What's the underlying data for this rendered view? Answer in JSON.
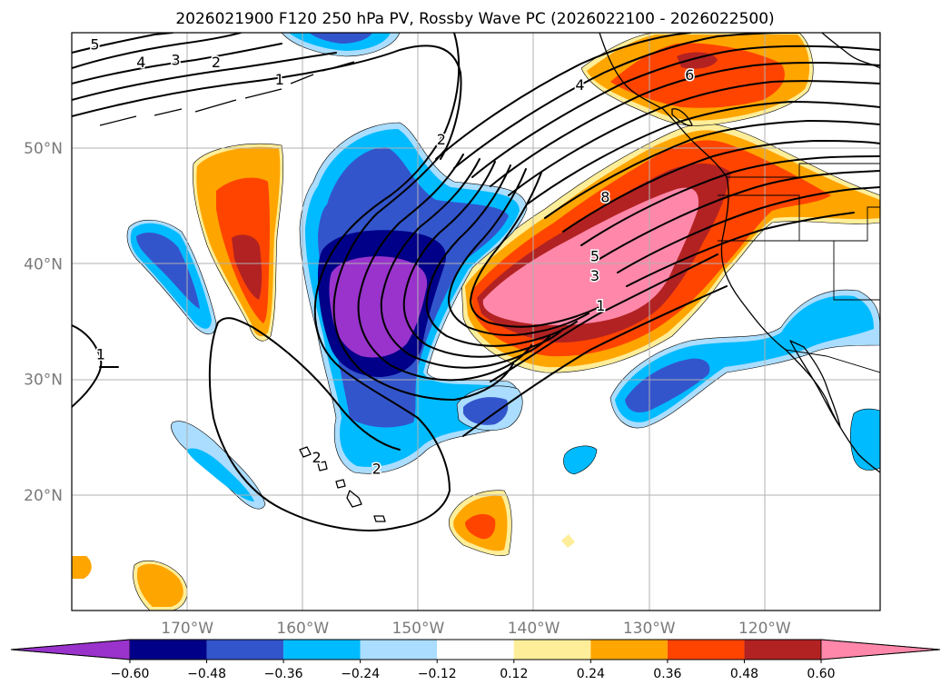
{
  "title": "2026021900 F120 250 hPa PV, Rossby Wave PC (2026022100 - 2026022500)",
  "map": {
    "projection": "PlateCarree",
    "lon_range": [
      -180,
      -110
    ],
    "lat_range": [
      10,
      60
    ],
    "lat_labels": [
      {
        "lat": 20,
        "label": "20°N"
      },
      {
        "lat": 30,
        "label": "30°N"
      },
      {
        "lat": 40,
        "label": "40°N"
      },
      {
        "lat": 50,
        "label": "50°N"
      }
    ],
    "lon_labels": [
      {
        "lon": -170,
        "label": "170°W"
      },
      {
        "lon": -160,
        "label": "160°W"
      },
      {
        "lon": -150,
        "label": "150°W"
      },
      {
        "lon": -140,
        "label": "140°W"
      },
      {
        "lon": -130,
        "label": "130°W"
      },
      {
        "lon": -120,
        "label": "120°W"
      }
    ],
    "gridlines": true
  },
  "colorbar": {
    "orientation": "horizontal",
    "extend": "both",
    "levels": [
      -0.6,
      -0.48,
      -0.36,
      -0.24,
      -0.12,
      0.12,
      0.24,
      0.36,
      0.48,
      0.6
    ],
    "tick_labels": [
      "−0.60",
      "−0.48",
      "−0.36",
      "−0.24",
      "−0.12",
      "0.12",
      "0.24",
      "0.36",
      "0.48",
      "0.60"
    ],
    "colors": [
      "#9933cc",
      "#000088",
      "#3355cc",
      "#00bbff",
      "#aaddff",
      "#ffffff",
      "#ffee99",
      "#ffa500",
      "#ff4400",
      "#b22222",
      "#ff88aa"
    ]
  },
  "contour_labels": [
    {
      "text": "5",
      "lon": -178.0,
      "lat": 59.0
    },
    {
      "text": "4",
      "lon": -174.0,
      "lat": 57.5
    },
    {
      "text": "3",
      "lon": -171.0,
      "lat": 57.7
    },
    {
      "text": "2",
      "lon": -167.5,
      "lat": 57.5
    },
    {
      "text": "1",
      "lon": -162.0,
      "lat": 56.0
    },
    {
      "text": "2",
      "lon": -148.0,
      "lat": 50.8
    },
    {
      "text": "4",
      "lon": -136.0,
      "lat": 55.5
    },
    {
      "text": "6",
      "lon": -126.5,
      "lat": 56.4
    },
    {
      "text": "8",
      "lon": -133.8,
      "lat": 45.8
    },
    {
      "text": "5",
      "lon": -134.7,
      "lat": 40.7
    },
    {
      "text": "3",
      "lon": -134.7,
      "lat": 39.0
    },
    {
      "text": "1",
      "lon": -134.2,
      "lat": 36.4
    },
    {
      "text": "1",
      "lon": -177.5,
      "lat": 32.2
    },
    {
      "text": "2",
      "lon": -158.8,
      "lat": 23.3
    },
    {
      "text": "2",
      "lon": -153.6,
      "lat": 22.3
    }
  ]
}
